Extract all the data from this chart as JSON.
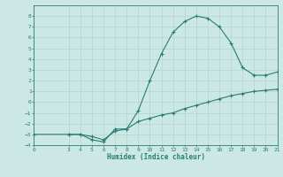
{
  "xlabel": "Humidex (Indice chaleur)",
  "bg_color": "#cce8e4",
  "grid_color": "#b8d8d4",
  "line_color": "#2a7d72",
  "upper_x": [
    3,
    4,
    5,
    6,
    7,
    8,
    9,
    10,
    11,
    12,
    13,
    14,
    15,
    16,
    17,
    18,
    19,
    20,
    21
  ],
  "upper_y": [
    -3.0,
    -3.0,
    -3.5,
    -3.7,
    -2.5,
    -2.5,
    -0.8,
    2.0,
    4.5,
    6.5,
    7.5,
    8.0,
    7.8,
    7.0,
    5.5,
    3.2,
    2.5,
    2.5,
    2.8
  ],
  "lower_x": [
    0,
    3,
    4,
    5,
    6,
    7,
    8,
    9,
    10,
    11,
    12,
    13,
    14,
    15,
    16,
    17,
    18,
    19,
    20,
    21
  ],
  "lower_y": [
    -3.0,
    -3.0,
    -3.0,
    -3.2,
    -3.5,
    -2.7,
    -2.5,
    -1.8,
    -1.5,
    -1.2,
    -1.0,
    -0.6,
    -0.3,
    0.0,
    0.3,
    0.6,
    0.8,
    1.0,
    1.1,
    1.2
  ],
  "xlim": [
    0,
    21
  ],
  "ylim": [
    -4,
    9
  ],
  "yticks": [
    -4,
    -3,
    -2,
    -1,
    0,
    1,
    2,
    3,
    4,
    5,
    6,
    7,
    8
  ],
  "xticks": [
    0,
    3,
    4,
    5,
    6,
    7,
    8,
    9,
    10,
    11,
    12,
    13,
    14,
    15,
    16,
    17,
    18,
    19,
    20,
    21
  ]
}
